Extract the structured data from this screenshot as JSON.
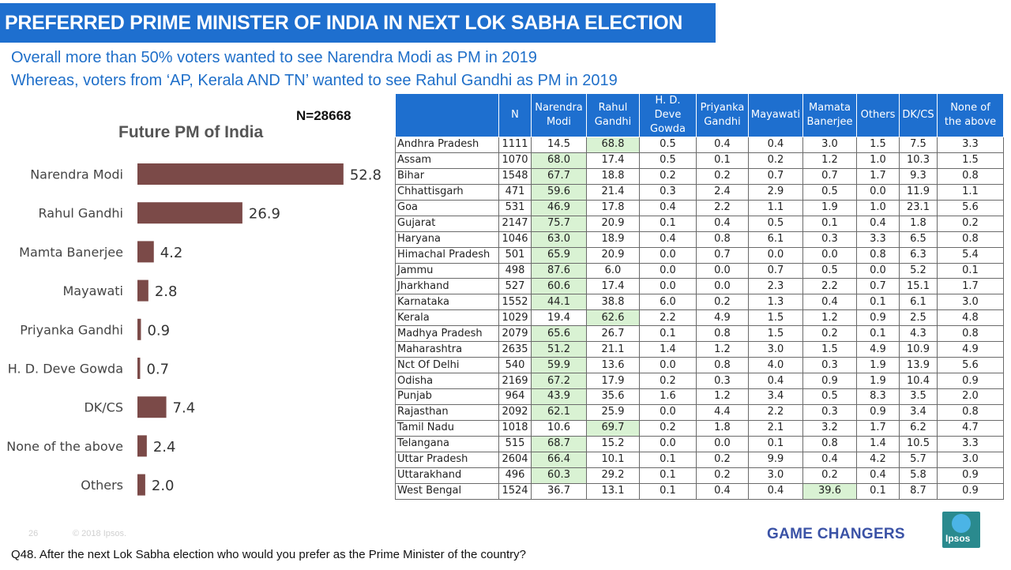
{
  "header": {
    "title": "PREFERRED PRIME MINISTER OF INDIA IN NEXT LOK SABHA ELECTION",
    "subtitle_1": "Overall more than 50% voters wanted to see Narendra Modi as PM in 2019",
    "subtitle_2": "Whereas, voters from ‘AP, Kerala AND TN’ wanted to see Rahul Gandhi as PM in 2019"
  },
  "sample_size": "N=28668",
  "chart_data": {
    "type": "bar",
    "orientation": "horizontal",
    "title": "Future PM of India",
    "categories": [
      "Narendra Modi",
      "Rahul Gandhi",
      "Mamta Banerjee",
      "Mayawati",
      "Priyanka Gandhi",
      "H. D. Deve Gowda",
      "DK/CS",
      "None of the above",
      "Others"
    ],
    "values": [
      52.8,
      26.9,
      4.2,
      2.8,
      0.9,
      0.7,
      7.4,
      2.4,
      2.0
    ],
    "value_labels": [
      "52.8",
      "26.9",
      "4.2",
      "2.8",
      "0.9",
      "0.7",
      "7.4",
      "2.4",
      "2.0"
    ],
    "bar_color": "#7b4a48",
    "grid": false,
    "legend": "none"
  },
  "table": {
    "columns": [
      "",
      "N",
      "Narendra Modi",
      "Rahul Gandhi",
      "H. D. Deve Gowda",
      "Priyanka Gandhi",
      "Mayawati",
      "Mamata Banerjee",
      "Others",
      "DK/CS",
      "None of the above"
    ],
    "header_color": "#1e6fcf",
    "highlight_color": "#d9f2d3",
    "rows": [
      {
        "state": "Andhra Pradesh",
        "values": [
          "1111",
          "14.5",
          "68.8",
          "0.5",
          "0.4",
          "0.4",
          "3.0",
          "1.5",
          "7.5",
          "3.3"
        ],
        "highlight": 2
      },
      {
        "state": "Assam",
        "values": [
          "1070",
          "68.0",
          "17.4",
          "0.5",
          "0.1",
          "0.2",
          "1.2",
          "1.0",
          "10.3",
          "1.5"
        ],
        "highlight": 1
      },
      {
        "state": "Bihar",
        "values": [
          "1548",
          "67.7",
          "18.8",
          "0.2",
          "0.2",
          "0.7",
          "0.7",
          "1.7",
          "9.3",
          "0.8"
        ],
        "highlight": 1
      },
      {
        "state": "Chhattisgarh",
        "values": [
          "471",
          "59.6",
          "21.4",
          "0.3",
          "2.4",
          "2.9",
          "0.5",
          "0.0",
          "11.9",
          "1.1"
        ],
        "highlight": 1
      },
      {
        "state": "Goa",
        "values": [
          "531",
          "46.9",
          "17.8",
          "0.4",
          "2.2",
          "1.1",
          "1.9",
          "1.0",
          "23.1",
          "5.6"
        ],
        "highlight": 1
      },
      {
        "state": "Gujarat",
        "values": [
          "2147",
          "75.7",
          "20.9",
          "0.1",
          "0.4",
          "0.5",
          "0.1",
          "0.4",
          "1.8",
          "0.2"
        ],
        "highlight": 1
      },
      {
        "state": "Haryana",
        "values": [
          "1046",
          "63.0",
          "18.9",
          "0.4",
          "0.8",
          "6.1",
          "0.3",
          "3.3",
          "6.5",
          "0.8"
        ],
        "highlight": 1
      },
      {
        "state": "Himachal Pradesh",
        "values": [
          "501",
          "65.9",
          "20.9",
          "0.0",
          "0.7",
          "0.0",
          "0.0",
          "0.8",
          "6.3",
          "5.4"
        ],
        "highlight": 1
      },
      {
        "state": "Jammu",
        "values": [
          "498",
          "87.6",
          "6.0",
          "0.0",
          "0.0",
          "0.7",
          "0.5",
          "0.0",
          "5.2",
          "0.1"
        ],
        "highlight": 1
      },
      {
        "state": "Jharkhand",
        "values": [
          "527",
          "60.6",
          "17.4",
          "0.0",
          "0.0",
          "2.3",
          "2.2",
          "0.7",
          "15.1",
          "1.7"
        ],
        "highlight": 1
      },
      {
        "state": "Karnataka",
        "values": [
          "1552",
          "44.1",
          "38.8",
          "6.0",
          "0.2",
          "1.3",
          "0.4",
          "0.1",
          "6.1",
          "3.0"
        ],
        "highlight": 1
      },
      {
        "state": "Kerala",
        "values": [
          "1029",
          "19.4",
          "62.6",
          "2.2",
          "4.9",
          "1.5",
          "1.2",
          "0.9",
          "2.5",
          "4.8"
        ],
        "highlight": 2
      },
      {
        "state": "Madhya Pradesh",
        "values": [
          "2079",
          "65.6",
          "26.7",
          "0.1",
          "0.8",
          "1.5",
          "0.2",
          "0.1",
          "4.3",
          "0.8"
        ],
        "highlight": 1
      },
      {
        "state": "Maharashtra",
        "values": [
          "2635",
          "51.2",
          "21.1",
          "1.4",
          "1.2",
          "3.0",
          "1.5",
          "4.9",
          "10.9",
          "4.9"
        ],
        "highlight": 1
      },
      {
        "state": "Nct Of Delhi",
        "values": [
          "540",
          "59.9",
          "13.6",
          "0.0",
          "0.8",
          "4.0",
          "0.3",
          "1.9",
          "13.9",
          "5.6"
        ],
        "highlight": 1
      },
      {
        "state": "Odisha",
        "values": [
          "2169",
          "67.2",
          "17.9",
          "0.2",
          "0.3",
          "0.4",
          "0.9",
          "1.9",
          "10.4",
          "0.9"
        ],
        "highlight": 1
      },
      {
        "state": "Punjab",
        "values": [
          "964",
          "43.9",
          "35.6",
          "1.6",
          "1.2",
          "3.4",
          "0.5",
          "8.3",
          "3.5",
          "2.0"
        ],
        "highlight": 1
      },
      {
        "state": "Rajasthan",
        "values": [
          "2092",
          "62.1",
          "25.9",
          "0.0",
          "4.4",
          "2.2",
          "0.3",
          "0.9",
          "3.4",
          "0.8"
        ],
        "highlight": 1
      },
      {
        "state": "Tamil Nadu",
        "values": [
          "1018",
          "10.6",
          "69.7",
          "0.2",
          "1.8",
          "2.1",
          "3.2",
          "1.7",
          "6.2",
          "4.7"
        ],
        "highlight": 2
      },
      {
        "state": "Telangana",
        "values": [
          "515",
          "68.7",
          "15.2",
          "0.0",
          "0.0",
          "0.1",
          "0.8",
          "1.4",
          "10.5",
          "3.3"
        ],
        "highlight": 1
      },
      {
        "state": "Uttar Pradesh",
        "values": [
          "2604",
          "66.4",
          "10.1",
          "0.1",
          "0.2",
          "9.9",
          "0.4",
          "4.2",
          "5.7",
          "3.0"
        ],
        "highlight": 1
      },
      {
        "state": "Uttarakhand",
        "values": [
          "496",
          "60.3",
          "29.2",
          "0.1",
          "0.2",
          "3.0",
          "0.2",
          "0.4",
          "5.8",
          "0.9"
        ],
        "highlight": 1
      },
      {
        "state": "West Bengal",
        "values": [
          "1524",
          "36.7",
          "13.1",
          "0.1",
          "0.4",
          "0.4",
          "39.6",
          "0.1",
          "8.7",
          "0.9"
        ],
        "highlight": 6
      }
    ]
  },
  "footer": {
    "page_number": "26",
    "copyright": "© 2018 Ipsos.",
    "question": "Q48. After the next Lok Sabha election who would you prefer as the Prime Minister of the country?",
    "tagline": "GAME CHANGERS",
    "logo_text": "Ipsos"
  }
}
